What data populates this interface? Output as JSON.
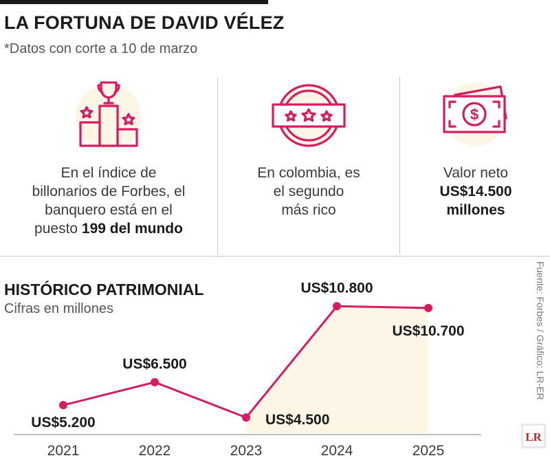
{
  "header": {
    "title": "LA FORTUNA DE DAVID VÉLEZ",
    "subtitle": "*Datos con corte a 10 de marzo"
  },
  "facts": [
    {
      "icon": "trophy-podium-icon",
      "lines": [
        "En el índice de",
        "billonarios de Forbes, el",
        "banquero está en el"
      ],
      "last_plain": "puesto ",
      "last_bold": "199 del mundo"
    },
    {
      "icon": "stars-badge-icon",
      "lines": [
        "En colombia, es",
        "el segundo",
        "más rico"
      ]
    },
    {
      "icon": "banknotes-icon",
      "lines": [
        "Valor neto"
      ],
      "bold_lines": [
        "US$14.500",
        "millones"
      ]
    }
  ],
  "colors": {
    "accent": "#d81b60",
    "fill": "#fdf6e6",
    "text": "#2a2a2a",
    "divider": "#c8c8c8"
  },
  "chart_data": {
    "type": "line",
    "title": "HISTÓRICO PATRIMONIAL",
    "subtitle": "Cifras en millones",
    "x": [
      "2021",
      "2022",
      "2023",
      "2024",
      "2025"
    ],
    "values": [
      5200,
      6500,
      4500,
      10800,
      10700
    ],
    "labels": [
      "US$5.200",
      "US$6.500",
      "US$4.500",
      "US$10.800",
      "US$10.700"
    ],
    "ylim": [
      4000,
      11200
    ],
    "grid": false
  },
  "footer": {
    "source": "Fuente: Forbes / Gráfico: LR-ER",
    "logo_text": "LR"
  }
}
